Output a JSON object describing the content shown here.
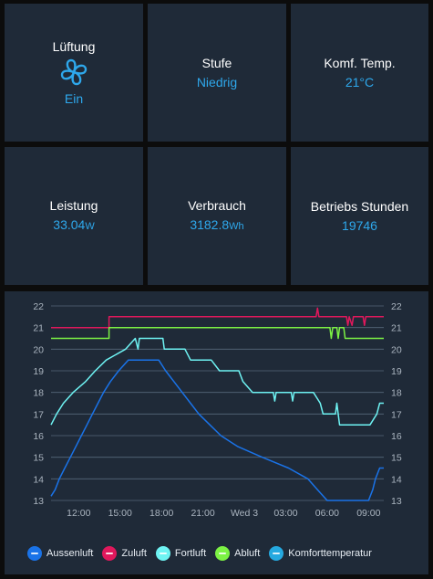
{
  "tiles": {
    "lueftung": {
      "title": "Lüftung",
      "value": "Ein",
      "icon": "fan-icon"
    },
    "stufe": {
      "title": "Stufe",
      "value": "Niedrig"
    },
    "komf_temp": {
      "title": "Komf. Temp.",
      "value": "21°C"
    },
    "leistung": {
      "title": "Leistung",
      "value": "33.04",
      "unit": "W"
    },
    "verbrauch": {
      "title": "Verbrauch",
      "value": "3182.8",
      "unit": "Wh"
    },
    "betriebs_stunden": {
      "title": "Betriebs Stunden",
      "value": "19746"
    }
  },
  "colors": {
    "tile_bg": "#1f2a38",
    "accent": "#2ea8ec"
  },
  "chart_data": {
    "type": "line",
    "ylim": [
      13,
      22
    ],
    "y_ticks": [
      "13",
      "14",
      "15",
      "16",
      "17",
      "18",
      "19",
      "20",
      "21",
      "22"
    ],
    "x_ticks": [
      {
        "t": 2,
        "label": "12:00"
      },
      {
        "t": 5,
        "label": "15:00"
      },
      {
        "t": 8,
        "label": "18:00"
      },
      {
        "t": 11,
        "label": "21:00"
      },
      {
        "t": 14,
        "label": "Wed 3"
      },
      {
        "t": 17,
        "label": "03:00"
      },
      {
        "t": 20,
        "label": "06:00"
      },
      {
        "t": 23,
        "label": "09:00"
      }
    ],
    "xlim": [
      0,
      24.1
    ],
    "grid": true,
    "legend_position": "bottom",
    "series": [
      {
        "name": "Aussenluft",
        "color": "#1a73e8",
        "points": [
          [
            0,
            13.2
          ],
          [
            0.3,
            13.5
          ],
          [
            0.6,
            14
          ],
          [
            1,
            14.5
          ],
          [
            1.4,
            15
          ],
          [
            1.8,
            15.5
          ],
          [
            2.2,
            16
          ],
          [
            2.6,
            16.5
          ],
          [
            3,
            17
          ],
          [
            3.4,
            17.5
          ],
          [
            3.8,
            18
          ],
          [
            4.3,
            18.5
          ],
          [
            4.9,
            19
          ],
          [
            5.6,
            19.5
          ],
          [
            7.8,
            19.5
          ],
          [
            8.3,
            19
          ],
          [
            8.9,
            18.5
          ],
          [
            9.5,
            18
          ],
          [
            10.1,
            17.5
          ],
          [
            10.7,
            17
          ],
          [
            11.5,
            16.5
          ],
          [
            12.3,
            16
          ],
          [
            13.5,
            15.5
          ],
          [
            15.3,
            15
          ],
          [
            17.2,
            14.5
          ],
          [
            18.6,
            14
          ],
          [
            19.3,
            13.5
          ],
          [
            20,
            13
          ],
          [
            23,
            13
          ],
          [
            23.3,
            13.5
          ],
          [
            23.5,
            14
          ],
          [
            23.8,
            14.5
          ],
          [
            24.1,
            14.5
          ]
        ]
      },
      {
        "name": "Zuluft",
        "color": "#e0185c",
        "points": [
          [
            0,
            21
          ],
          [
            4.2,
            21
          ],
          [
            4.2,
            21.5
          ],
          [
            19.2,
            21.5
          ],
          [
            19.3,
            21.9
          ],
          [
            19.4,
            21.5
          ],
          [
            21.4,
            21.5
          ],
          [
            21.5,
            21.1
          ],
          [
            21.6,
            21.5
          ],
          [
            21.8,
            21.1
          ],
          [
            21.9,
            21.5
          ],
          [
            22.6,
            21.5
          ],
          [
            22.7,
            21.1
          ],
          [
            22.8,
            21.5
          ],
          [
            24.1,
            21.5
          ]
        ]
      },
      {
        "name": "Fortluft",
        "color": "#6ef3f3",
        "points": [
          [
            0,
            16.5
          ],
          [
            0.4,
            17
          ],
          [
            0.9,
            17.5
          ],
          [
            1.6,
            18
          ],
          [
            2.5,
            18.5
          ],
          [
            3.2,
            19
          ],
          [
            4,
            19.5
          ],
          [
            5.4,
            20
          ],
          [
            6.1,
            20.5
          ],
          [
            6.3,
            20
          ],
          [
            6.4,
            20.5
          ],
          [
            8.1,
            20.5
          ],
          [
            8.2,
            20
          ],
          [
            9.7,
            20
          ],
          [
            10.1,
            19.5
          ],
          [
            11.6,
            19.5
          ],
          [
            12.2,
            19
          ],
          [
            13.6,
            19
          ],
          [
            13.9,
            18.5
          ],
          [
            14.6,
            18
          ],
          [
            16.1,
            18
          ],
          [
            16.2,
            17.6
          ],
          [
            16.3,
            18
          ],
          [
            17.4,
            18
          ],
          [
            17.5,
            17.6
          ],
          [
            17.6,
            18
          ],
          [
            19,
            18
          ],
          [
            19.5,
            17.5
          ],
          [
            19.7,
            17
          ],
          [
            20.6,
            17
          ],
          [
            20.7,
            17.5
          ],
          [
            20.9,
            16.5
          ],
          [
            23.1,
            16.5
          ],
          [
            23.6,
            17
          ],
          [
            23.8,
            17.5
          ],
          [
            24.1,
            17.5
          ]
        ]
      },
      {
        "name": "Abluft",
        "color": "#7cf244",
        "points": [
          [
            0,
            20.5
          ],
          [
            4.2,
            20.5
          ],
          [
            4.2,
            21
          ],
          [
            20.2,
            21
          ],
          [
            20.3,
            20.5
          ],
          [
            20.4,
            21
          ],
          [
            20.7,
            21
          ],
          [
            20.8,
            20.5
          ],
          [
            20.9,
            21
          ],
          [
            21.2,
            21
          ],
          [
            21.3,
            20.5
          ],
          [
            24.1,
            20.5
          ]
        ]
      },
      {
        "name": "Komforttemperatur",
        "color": "#25a9e0",
        "points": []
      }
    ]
  }
}
